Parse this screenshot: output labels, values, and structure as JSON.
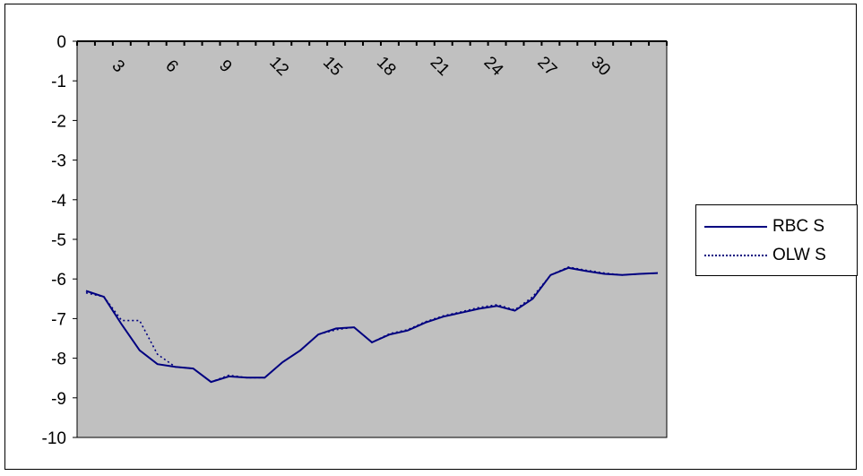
{
  "chart_data": {
    "type": "line",
    "title": "",
    "xlabel": "",
    "ylabel": "",
    "ylim": [
      -10,
      0
    ],
    "y_ticks": [
      0,
      -1,
      -2,
      -3,
      -4,
      -5,
      -6,
      -7,
      -8,
      -9,
      -10
    ],
    "x_range": [
      1,
      33
    ],
    "x_ticks": [
      3,
      6,
      9,
      12,
      15,
      18,
      21,
      24,
      27,
      30
    ],
    "x_tick_labels": [
      "3",
      "6",
      "9",
      "12",
      "15",
      "18",
      "21",
      "24",
      "27",
      "30"
    ],
    "x_axis_position": "top (at y = 0), labels rotated",
    "plot_background": "#c0c0c0",
    "grid": false,
    "legend_position": "right",
    "series": [
      {
        "name": "RBC S",
        "color": "#000080",
        "style": "solid",
        "x": [
          1,
          2,
          3,
          4,
          5,
          6,
          7,
          8,
          9,
          10,
          11,
          12,
          13,
          14,
          15,
          16,
          17,
          18,
          19,
          20,
          21,
          22,
          23,
          24,
          25,
          26,
          27,
          28,
          29,
          30,
          31,
          32,
          33
        ],
        "values": [
          -6.3,
          -6.45,
          -7.15,
          -7.8,
          -8.15,
          -8.22,
          -8.26,
          -8.6,
          -8.46,
          -8.49,
          -8.49,
          -8.1,
          -7.8,
          -7.4,
          -7.25,
          -7.22,
          -7.6,
          -7.4,
          -7.3,
          -7.1,
          -6.95,
          -6.85,
          -6.75,
          -6.68,
          -6.8,
          -6.5,
          -5.9,
          -5.72,
          -5.8,
          -5.87,
          -5.9,
          -5.87,
          -5.85
        ]
      },
      {
        "name": "OLW S",
        "color": "#000080",
        "style": "dotted",
        "x": [
          1,
          2,
          3,
          4,
          5,
          6,
          7,
          8,
          9,
          10,
          11,
          12,
          13,
          14,
          15,
          16,
          17,
          18,
          19,
          20,
          21,
          22,
          23,
          24,
          25,
          26,
          27,
          28,
          29,
          30,
          31,
          32,
          33
        ],
        "values": [
          -6.35,
          -6.45,
          -7.05,
          -7.05,
          -7.9,
          -8.22,
          -8.26,
          -8.6,
          -8.43,
          -8.49,
          -8.49,
          -8.1,
          -7.8,
          -7.4,
          -7.28,
          -7.22,
          -7.6,
          -7.38,
          -7.28,
          -7.08,
          -6.93,
          -6.83,
          -6.72,
          -6.65,
          -6.78,
          -6.45,
          -5.9,
          -5.7,
          -5.78,
          -5.85,
          -5.9,
          -5.87,
          -5.85
        ]
      }
    ]
  }
}
